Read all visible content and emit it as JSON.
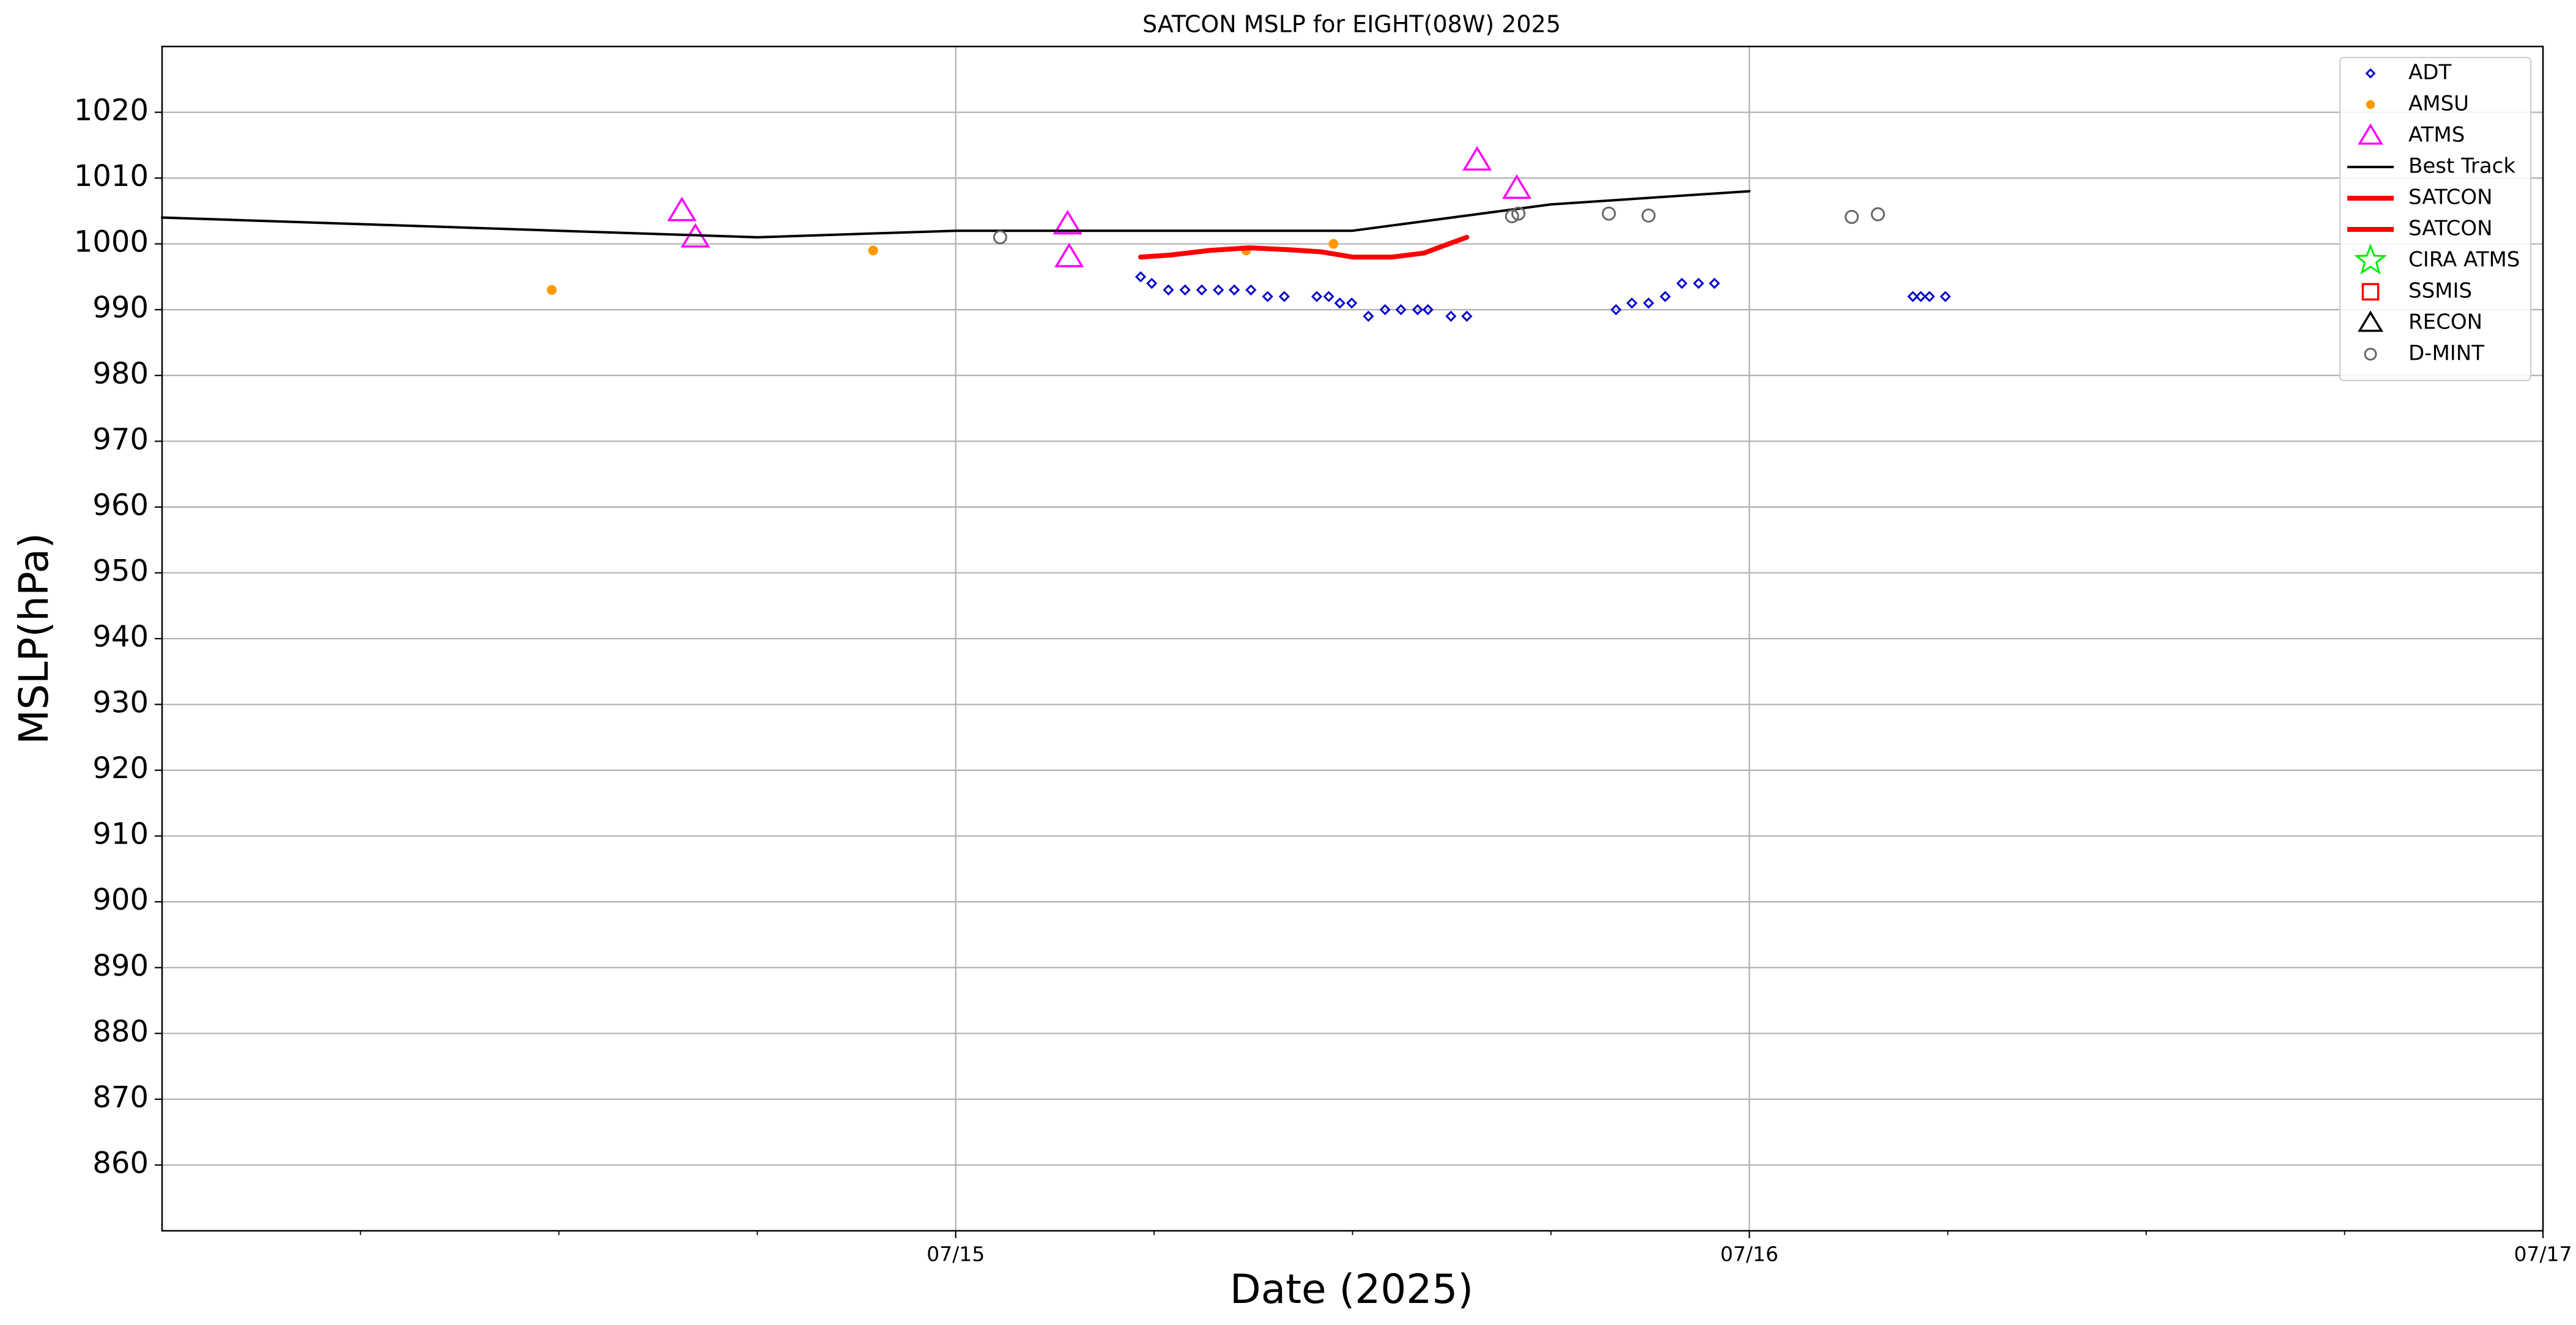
{
  "chart_data": {
    "type": "scatter",
    "title": "SATCON MSLP for EIGHT(08W) 2025",
    "xlabel": "Date (2025)",
    "ylabel": "MSLP(hPa)",
    "xlim": [
      14,
      17
    ],
    "xticks": [
      {
        "value": 15,
        "label": "07/15"
      },
      {
        "value": 16,
        "label": "07/16"
      },
      {
        "value": 17,
        "label": "07/17"
      }
    ],
    "xminor_ticks": [
      14.25,
      14.5,
      14.75,
      15.25,
      15.5,
      15.75,
      16.25,
      16.5,
      16.75
    ],
    "ylim": [
      850,
      1030
    ],
    "yticks": [
      860,
      870,
      880,
      890,
      900,
      910,
      920,
      930,
      940,
      950,
      960,
      970,
      980,
      990,
      1000,
      1010,
      1020
    ],
    "grid": true,
    "legend": "upper right",
    "series": [
      {
        "name": "ADT",
        "color": "#0000cc",
        "marker": "D",
        "x": [
          15.233,
          15.247,
          15.268,
          15.289,
          15.31,
          15.331,
          15.351,
          15.372,
          15.393,
          15.414,
          15.455,
          15.47,
          15.484,
          15.499,
          15.52,
          15.541,
          15.561,
          15.582,
          15.595,
          15.624,
          15.644,
          15.832,
          15.852,
          15.873,
          15.894,
          15.915,
          15.936,
          15.956,
          16.206,
          16.216,
          16.227,
          16.247
        ],
        "values": [
          995,
          994,
          993,
          993,
          993,
          993,
          993,
          993,
          992,
          992,
          992,
          992,
          991,
          991,
          989,
          990,
          990,
          990,
          990,
          989,
          989,
          990,
          991,
          991,
          992,
          994,
          994,
          994,
          992,
          992,
          992,
          992
        ]
      },
      {
        "name": "AMSU",
        "color": "#ff9900",
        "marker": "o",
        "x": [
          14.491,
          14.896,
          15.366,
          15.476
        ],
        "values": [
          993,
          999,
          999,
          1000
        ]
      },
      {
        "name": "ATMS",
        "color": "#ff00ff",
        "marker": "^",
        "x": [
          14.655,
          14.672,
          15.141,
          15.143,
          15.657,
          15.707
        ],
        "values": [
          1005,
          1001,
          1003,
          998,
          1012.7,
          1008.4
        ]
      },
      {
        "name": "Best Track",
        "color": "#000000",
        "marker": "line",
        "x": [
          14,
          14.25,
          14.5,
          14.75,
          15,
          15.25,
          15.5,
          15.75,
          16
        ],
        "values": [
          1004,
          1003,
          1002,
          1001,
          1002,
          1002,
          1002,
          1006,
          1008
        ]
      },
      {
        "name": "SATCON",
        "color": "#ff0000",
        "marker": "thick-line",
        "x": [
          15.233,
          15.27,
          15.32,
          15.37,
          15.42,
          15.46,
          15.5,
          15.55,
          15.59,
          15.61,
          15.644
        ],
        "values": [
          998,
          998.3,
          999,
          999.4,
          999.1,
          998.8,
          998,
          998,
          998.6,
          999.5,
          1001
        ]
      },
      {
        "name": "SATCON",
        "color": "#ff0000",
        "marker": "thick-line",
        "x": [],
        "values": []
      },
      {
        "name": "CIRA ATMS",
        "color": "#00ee00",
        "marker": "*",
        "x": [],
        "values": []
      },
      {
        "name": "SSMIS",
        "color": "#ff0000",
        "marker": "s",
        "x": [],
        "values": []
      },
      {
        "name": "RECON",
        "color": "#000000",
        "marker": "^",
        "x": [],
        "values": []
      },
      {
        "name": "D-MINT",
        "color": "#666666",
        "marker": "o-open",
        "x": [
          15.056,
          15.701,
          15.709,
          15.823,
          15.873,
          16.129,
          16.162
        ],
        "values": [
          1001,
          1004.2,
          1004.6,
          1004.6,
          1004.3,
          1004.1,
          1004.5
        ]
      }
    ]
  }
}
